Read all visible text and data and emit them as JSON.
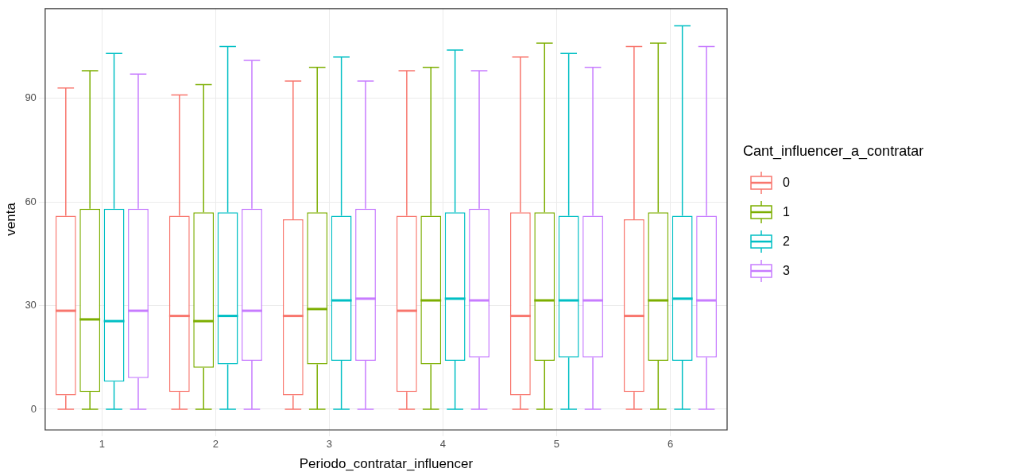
{
  "chart_data": {
    "type": "box",
    "xlabel": "Periodo_contratar_influencer",
    "ylabel": "venta",
    "legend_title": "Cant_influencer_a_contratar",
    "legend": "right",
    "grid": true,
    "categories": [
      "1",
      "2",
      "3",
      "4",
      "5",
      "6"
    ],
    "ylim": [
      -6,
      116
    ],
    "yticks": [
      0,
      30,
      60,
      90
    ],
    "series": [
      {
        "name": "0",
        "color": "#f8766d",
        "boxes": [
          {
            "low": 0,
            "q1": 4,
            "median": 28.5,
            "q3": 56,
            "high": 93
          },
          {
            "low": 0,
            "q1": 5,
            "median": 27,
            "q3": 56,
            "high": 91
          },
          {
            "low": 0,
            "q1": 4,
            "median": 27,
            "q3": 55,
            "high": 95
          },
          {
            "low": 0,
            "q1": 5,
            "median": 28.5,
            "q3": 56,
            "high": 98
          },
          {
            "low": 0,
            "q1": 4,
            "median": 27,
            "q3": 57,
            "high": 102
          },
          {
            "low": 0,
            "q1": 5,
            "median": 27,
            "q3": 55,
            "high": 105
          }
        ]
      },
      {
        "name": "1",
        "color": "#7cae00",
        "boxes": [
          {
            "low": 0,
            "q1": 5,
            "median": 26,
            "q3": 58,
            "high": 98
          },
          {
            "low": 0,
            "q1": 12,
            "median": 25.5,
            "q3": 57,
            "high": 94
          },
          {
            "low": 0,
            "q1": 13,
            "median": 29,
            "q3": 57,
            "high": 99
          },
          {
            "low": 0,
            "q1": 13,
            "median": 31.5,
            "q3": 56,
            "high": 99
          },
          {
            "low": 0,
            "q1": 14,
            "median": 31.5,
            "q3": 57,
            "high": 106
          },
          {
            "low": 0,
            "q1": 14,
            "median": 31.5,
            "q3": 57,
            "high": 106
          }
        ]
      },
      {
        "name": "2",
        "color": "#00bfc4",
        "boxes": [
          {
            "low": 0,
            "q1": 8,
            "median": 25.5,
            "q3": 58,
            "high": 103
          },
          {
            "low": 0,
            "q1": 13,
            "median": 27,
            "q3": 57,
            "high": 105
          },
          {
            "low": 0,
            "q1": 14,
            "median": 31.5,
            "q3": 56,
            "high": 102
          },
          {
            "low": 0,
            "q1": 14,
            "median": 32,
            "q3": 57,
            "high": 104
          },
          {
            "low": 0,
            "q1": 15,
            "median": 31.5,
            "q3": 56,
            "high": 103
          },
          {
            "low": 0,
            "q1": 14,
            "median": 32,
            "q3": 56,
            "high": 111
          }
        ]
      },
      {
        "name": "3",
        "color": "#c77cff",
        "boxes": [
          {
            "low": 0,
            "q1": 9,
            "median": 28.5,
            "q3": 58,
            "high": 97
          },
          {
            "low": 0,
            "q1": 14,
            "median": 28.5,
            "q3": 58,
            "high": 101
          },
          {
            "low": 0,
            "q1": 14,
            "median": 32,
            "q3": 58,
            "high": 95
          },
          {
            "low": 0,
            "q1": 15,
            "median": 31.5,
            "q3": 58,
            "high": 98
          },
          {
            "low": 0,
            "q1": 15,
            "median": 31.5,
            "q3": 56,
            "high": 99
          },
          {
            "low": 0,
            "q1": 15,
            "median": 31.5,
            "q3": 56,
            "high": 105
          }
        ]
      }
    ]
  }
}
